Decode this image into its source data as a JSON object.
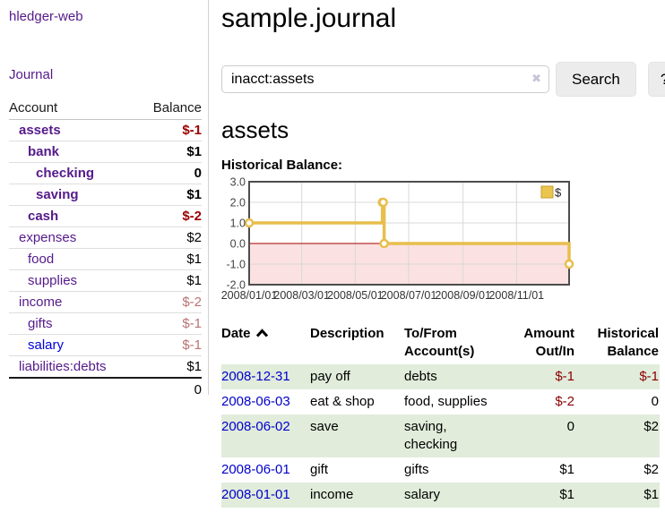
{
  "sidebar": {
    "brand": "hledger-web",
    "nav_journal": "Journal",
    "table": {
      "account_header": "Account",
      "balance_header": "Balance",
      "rows": [
        {
          "name": "assets",
          "balance": "$-1",
          "depth": 1,
          "name_style": "name-bold-purple",
          "balance_style": "bal-neg-strong"
        },
        {
          "name": "bank",
          "balance": "$1",
          "depth": 2,
          "name_style": "name-bold-purple",
          "balance_style": "bal-bold"
        },
        {
          "name": "checking",
          "balance": "0",
          "depth": 3,
          "name_style": "name-bold-purple",
          "balance_style": "bal-bold"
        },
        {
          "name": "saving",
          "balance": "$1",
          "depth": 3,
          "name_style": "name-bold-purple",
          "balance_style": "bal-bold"
        },
        {
          "name": "cash",
          "balance": "$-2",
          "depth": 2,
          "name_style": "name-bold-purple",
          "balance_style": "bal-neg-strong"
        },
        {
          "name": "expenses",
          "balance": "$2",
          "depth": 1,
          "name_style": "name-purple",
          "balance_style": "bal-plain"
        },
        {
          "name": "food",
          "balance": "$1",
          "depth": 2,
          "name_style": "name-purple",
          "balance_style": "bal-plain"
        },
        {
          "name": "supplies",
          "balance": "$1",
          "depth": 2,
          "name_style": "name-purple",
          "balance_style": "bal-plain"
        },
        {
          "name": "income",
          "balance": "$-2",
          "depth": 1,
          "name_style": "name-purple",
          "balance_style": "bal-neg-dim"
        },
        {
          "name": "gifts",
          "balance": "$-1",
          "depth": 2,
          "name_style": "name-purple",
          "balance_style": "bal-neg-dim"
        },
        {
          "name": "salary",
          "balance": "$-1",
          "depth": 2,
          "name_style": "name-blue",
          "balance_style": "bal-neg-dim"
        },
        {
          "name": "liabilities:debts",
          "balance": "$1",
          "depth": 1,
          "name_style": "name-purple",
          "balance_style": "bal-plain",
          "last": true
        }
      ],
      "total": "0"
    }
  },
  "main": {
    "title": "sample.journal",
    "search": {
      "value": "inacct:assets",
      "button_label": "Search",
      "help_label": "?",
      "clear_glyph": "✖"
    },
    "account_title": "assets",
    "chart_heading": "Historical Balance:"
  },
  "chart_data": {
    "type": "line",
    "step": "post",
    "title": "Historical Balance",
    "series": [
      {
        "name": "$",
        "color": "#E8BE4C",
        "points": [
          {
            "date": "2008-01-01",
            "day": 0,
            "value": 1
          },
          {
            "date": "2008-06-01",
            "day": 152,
            "value": 2
          },
          {
            "date": "2008-06-02",
            "day": 153,
            "value": 2
          },
          {
            "date": "2008-06-03",
            "day": 154,
            "value": 0
          },
          {
            "date": "2008-12-31",
            "day": 365,
            "value": -1
          }
        ]
      }
    ],
    "x_ticks": [
      {
        "label": "2008/01/01",
        "day": 0
      },
      {
        "label": "2008/03/01",
        "day": 60
      },
      {
        "label": "2008/05/01",
        "day": 121
      },
      {
        "label": "2008/07/01",
        "day": 182
      },
      {
        "label": "2008/09/01",
        "day": 244
      },
      {
        "label": "2008/11/01",
        "day": 305
      }
    ],
    "x_range_days": [
      0,
      365
    ],
    "y_ticks": [
      "3.0",
      "2.0",
      "1.0",
      "0.0",
      "-1.0",
      "-2.0"
    ],
    "ylim": [
      -2,
      3
    ],
    "grid": true,
    "legend_position": "top-right",
    "colors": {
      "negative_region_fill": "#FBE1E1",
      "zero_line": "#A30000",
      "grid_line": "#D8D8D8",
      "plot_border": "#4D4D4D",
      "legend_fill": "#EBC54F",
      "legend_border": "#C79F2A"
    }
  },
  "register": {
    "columns": [
      {
        "label": "Date",
        "align": "left",
        "sorted_asc": true
      },
      {
        "label": "Description",
        "align": "left"
      },
      {
        "label": "To/From Account(s)",
        "align": "left"
      },
      {
        "label": "Amount Out/In",
        "align": "right"
      },
      {
        "label": "Historical Balance",
        "align": "right"
      }
    ],
    "rows": [
      {
        "date": "2008-12-31",
        "description": "pay off",
        "accounts": "debts",
        "amount": "$-1",
        "amount_neg": true,
        "balance": "$-1",
        "balance_neg": true,
        "shaded": true
      },
      {
        "date": "2008-06-03",
        "description": "eat & shop",
        "accounts": "food, supplies",
        "amount": "$-2",
        "amount_neg": true,
        "balance": "0",
        "balance_neg": false,
        "shaded": false
      },
      {
        "date": "2008-06-02",
        "description": "save",
        "accounts": "saving, checking",
        "amount": "0",
        "amount_neg": false,
        "balance": "$2",
        "balance_neg": false,
        "shaded": true
      },
      {
        "date": "2008-06-01",
        "description": "gift",
        "accounts": "gifts",
        "amount": "$1",
        "amount_neg": false,
        "balance": "$2",
        "balance_neg": false,
        "shaded": false
      },
      {
        "date": "2008-01-01",
        "description": "income",
        "accounts": "salary",
        "amount": "$1",
        "amount_neg": false,
        "balance": "$1",
        "balance_neg": false,
        "shaded": true
      }
    ]
  }
}
